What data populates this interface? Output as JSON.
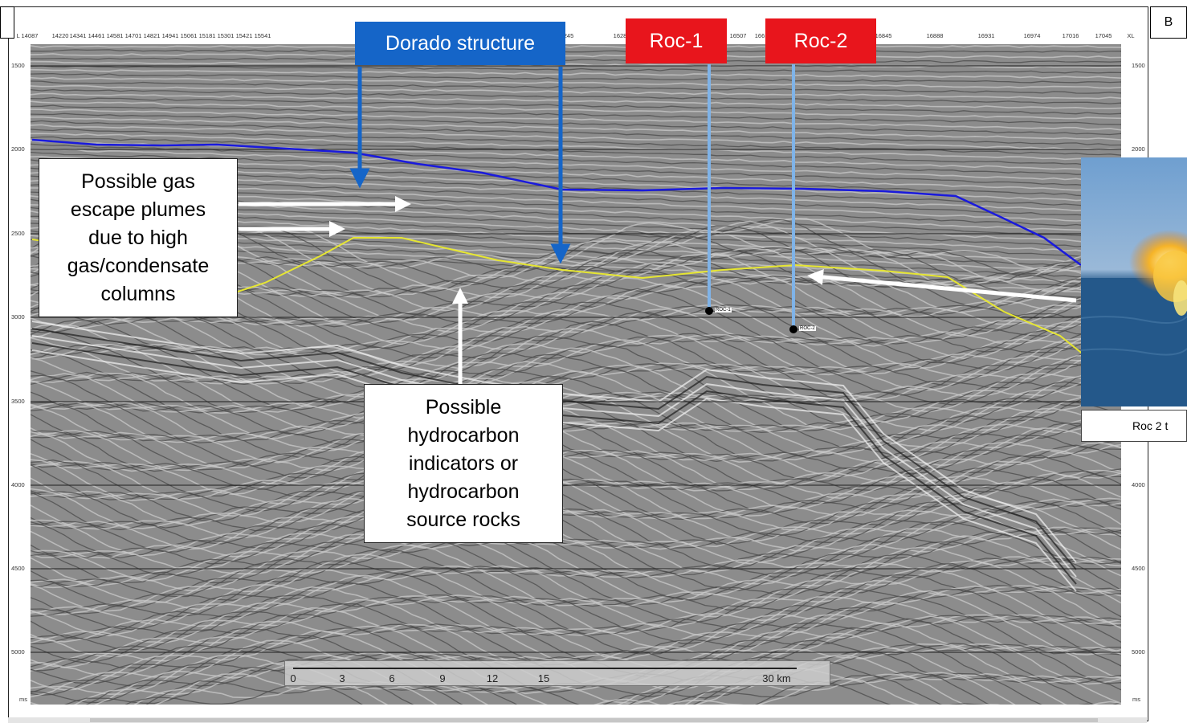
{
  "panel_labels": {
    "left": "",
    "right": "B"
  },
  "axes": {
    "x_unit": "XL",
    "x_start_label": "L 14087",
    "x_ticks": [
      "14220",
      "14341",
      "14461",
      "14581",
      "14701",
      "14821",
      "14941",
      "15061",
      "15181",
      "15301",
      "15421",
      "15541",
      "245",
      "1628",
      "16507",
      "166",
      "16845",
      "16888",
      "16931",
      "16974",
      "17016",
      "17045"
    ],
    "y_unit": "ms",
    "y_ticks": [
      "1500",
      "2000",
      "2500",
      "3000",
      "3500",
      "4000",
      "4500",
      "5000"
    ]
  },
  "annotations": {
    "dorado": "Dorado structure",
    "roc1": "Roc-1",
    "roc2": "Roc-2",
    "gas_line1": "Possible gas",
    "gas_line2": "escape plumes",
    "gas_line3": "due to high",
    "gas_line4": "gas/condensate",
    "gas_line5": "columns",
    "hc_line1": "Possible",
    "hc_line2": "hydrocarbon",
    "hc_line3": "indicators or",
    "hc_line4": "hydrocarbon",
    "hc_line5": "source rocks"
  },
  "wells": [
    {
      "name": "ROC-1"
    },
    {
      "name": "ROC-2"
    }
  ],
  "scale_bar": {
    "ticks": [
      "0",
      "3",
      "6",
      "9",
      "12",
      "15"
    ],
    "end_label": "30 km"
  },
  "photo_caption": "Roc 2 t",
  "colors": {
    "blue_horizon": "#1a1adc",
    "yellow_horizon": "#e6e632",
    "dorado_box": "#1565c8",
    "roc_box": "#e8151c",
    "well_track": "#7fb3e8"
  }
}
